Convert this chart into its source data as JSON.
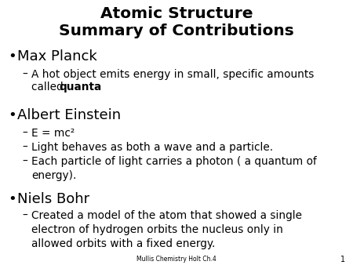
{
  "title_line1": "Atomic Structure",
  "title_line2": "Summary of Contributions",
  "background_color": "#ffffff",
  "text_color": "#000000",
  "footer_text": "Mullis Chemistry Holt Ch.4",
  "footer_page": "1",
  "title_fontsize": 14.5,
  "bullet0_fontsize": 13.0,
  "bullet1_fontsize": 9.8,
  "items": [
    {
      "level": 0,
      "text": "Max Planck"
    },
    {
      "level": 1,
      "parts": [
        {
          "text": "A hot object emits energy in small, specific amounts\ncalled ",
          "bold": false
        },
        {
          "text": "quanta",
          "bold": true
        },
        {
          "text": ".",
          "bold": false
        }
      ]
    },
    {
      "level": 0,
      "text": "Albert Einstein"
    },
    {
      "level": 1,
      "parts": [
        {
          "text": "E = mc²",
          "bold": false
        }
      ]
    },
    {
      "level": 1,
      "parts": [
        {
          "text": "Light behaves as both a wave and a particle.",
          "bold": false
        }
      ]
    },
    {
      "level": 1,
      "parts": [
        {
          "text": "Each particle of light carries a photon ( a quantum of\nenergy).",
          "bold": false
        }
      ]
    },
    {
      "level": 0,
      "text": "Niels Bohr"
    },
    {
      "level": 1,
      "parts": [
        {
          "text": "Created a model of the atom that showed a single\nelectron of hydrogen orbits the nucleus only in\nallowed orbits with a fixed energy.",
          "bold": false
        }
      ]
    }
  ]
}
